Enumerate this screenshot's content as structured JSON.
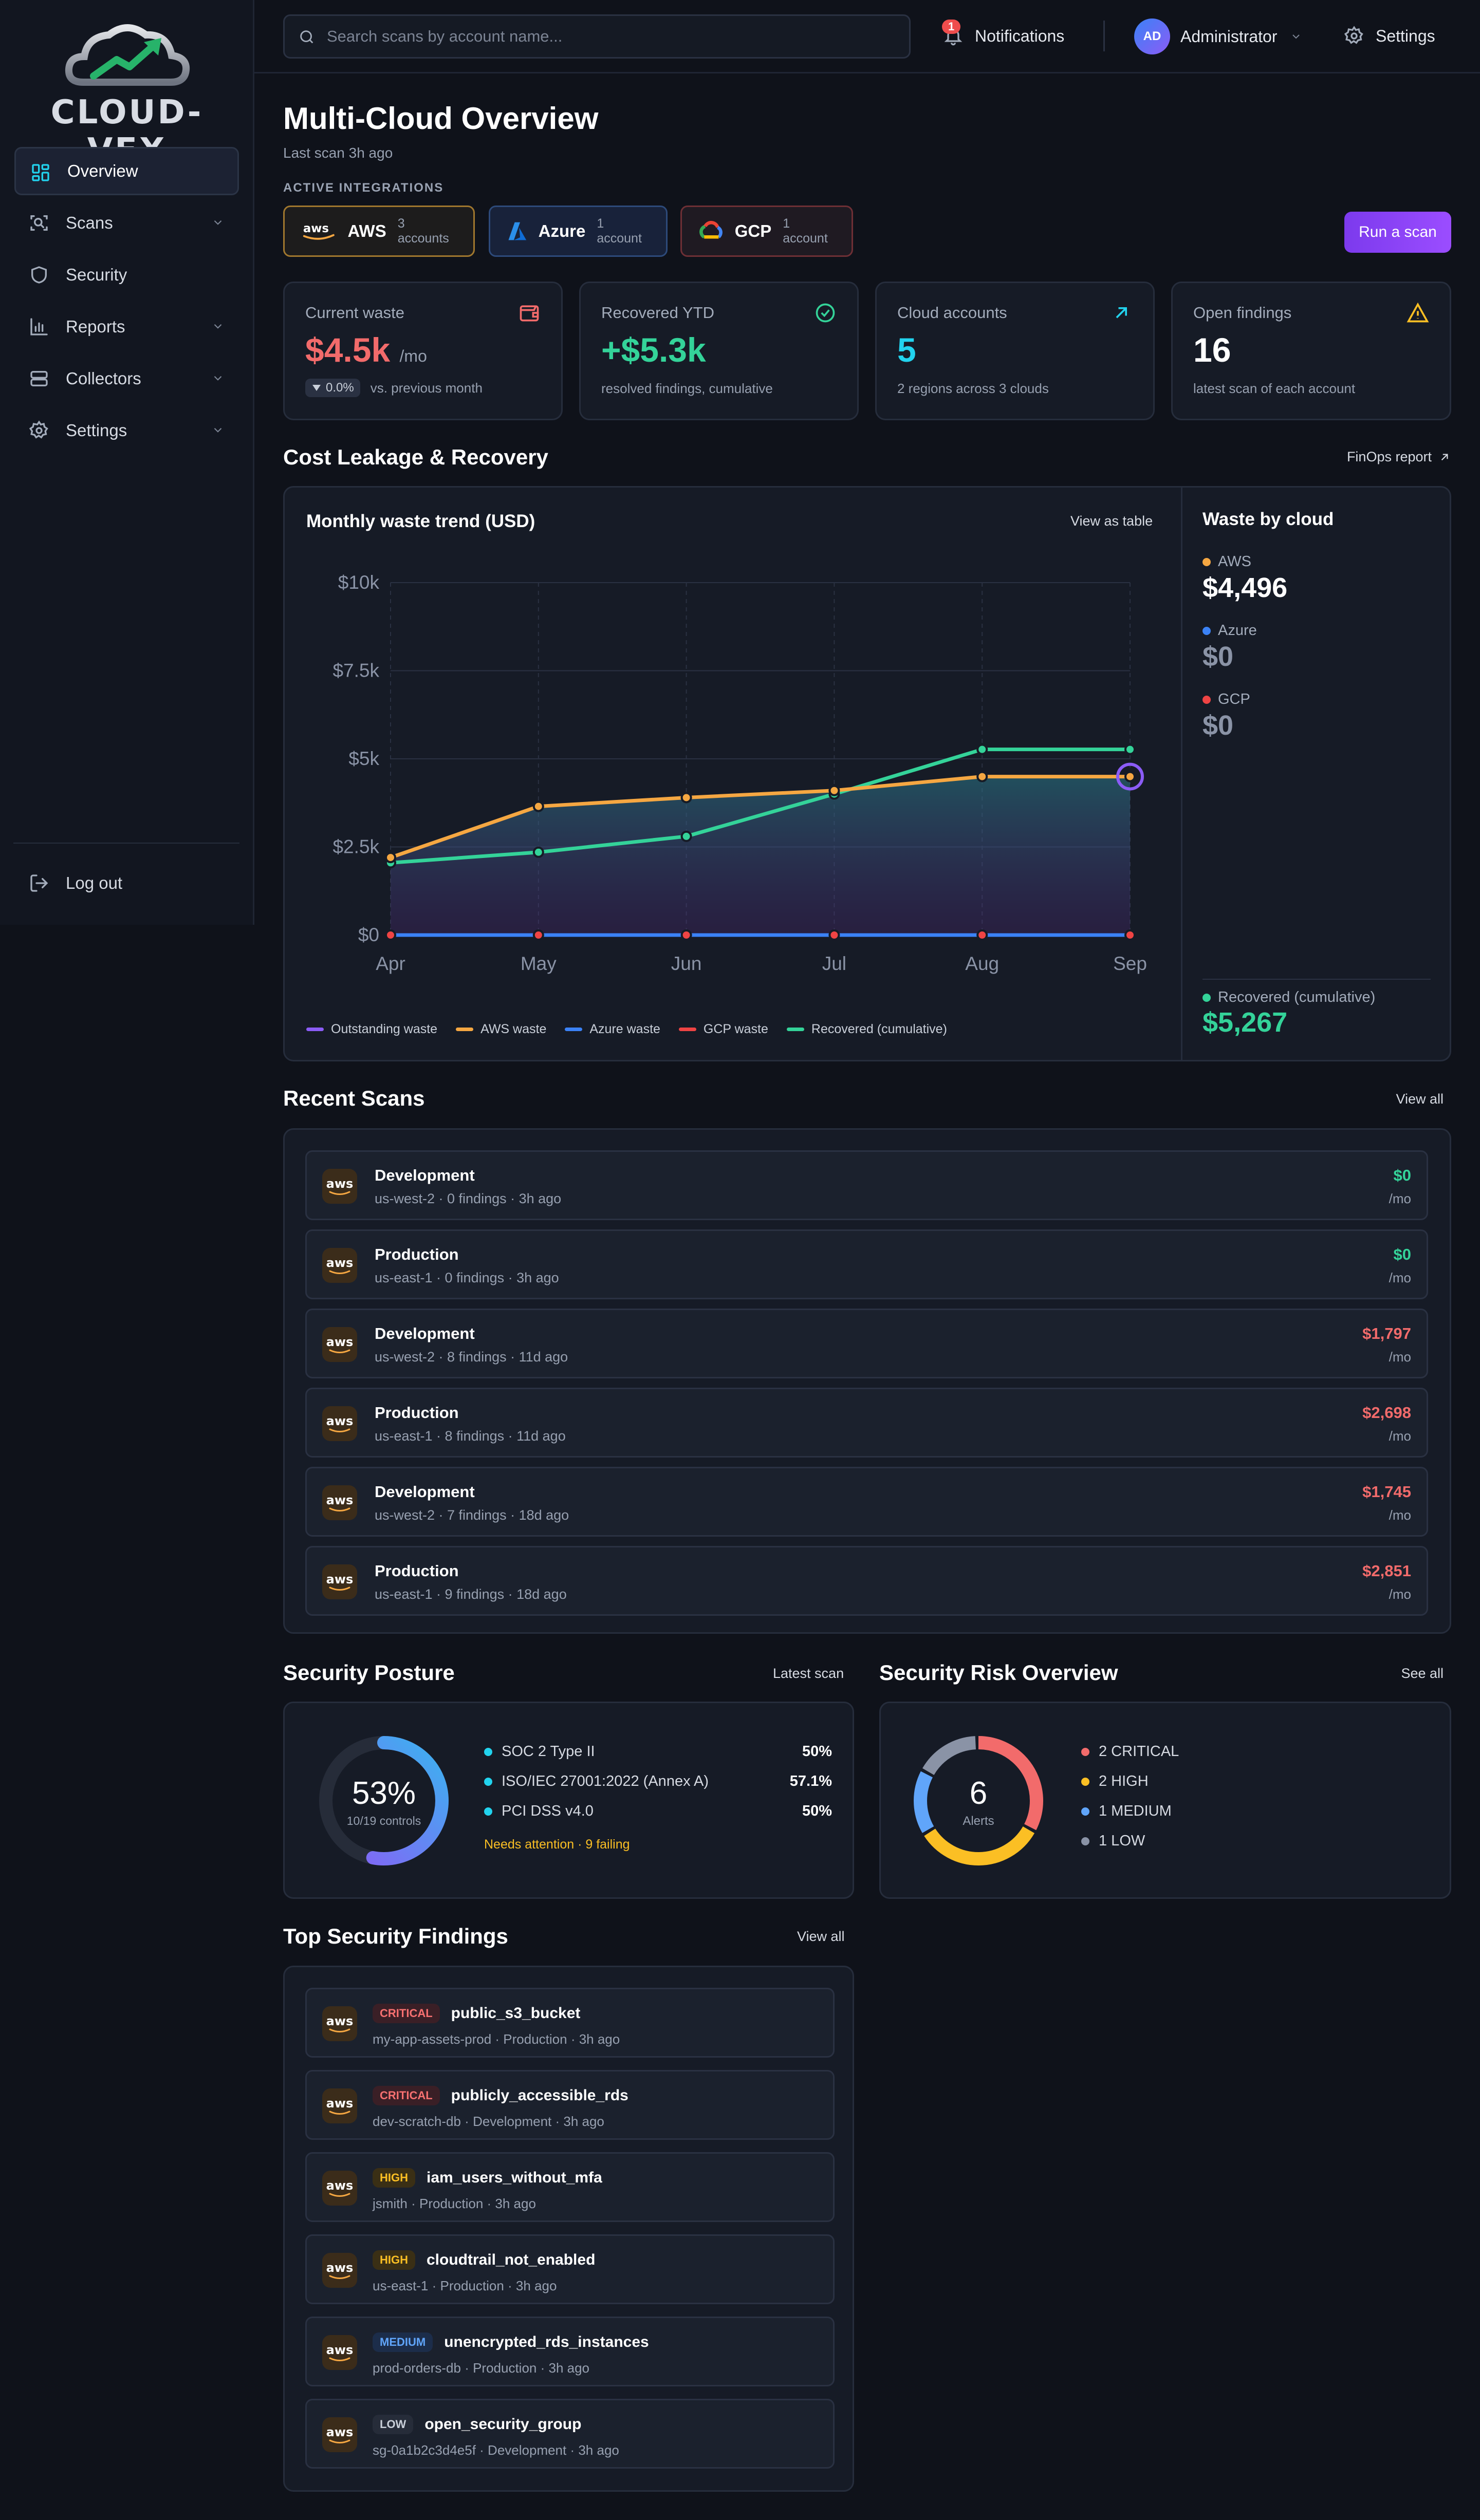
{
  "brand": {
    "name": "CLOUD-VEX"
  },
  "sidebar": {
    "items": [
      {
        "label": "Overview",
        "icon": "dashboard-icon"
      },
      {
        "label": "Scans",
        "icon": "scan-icon"
      },
      {
        "label": "Security",
        "icon": "shield-icon"
      },
      {
        "label": "Reports",
        "icon": "bar-chart-icon"
      },
      {
        "label": "Collectors",
        "icon": "server-icon"
      },
      {
        "label": "Settings",
        "icon": "gear-icon"
      }
    ],
    "logout": "Log out"
  },
  "topbar": {
    "search_placeholder": "Search scans by account name...",
    "notifications_label": "Notifications",
    "notifications_count": "1",
    "user_initials": "AD",
    "user_name": "Administrator",
    "settings_label": "Settings"
  },
  "page": {
    "title": "Multi-Cloud Overview",
    "subtitle": "Last scan 3h ago",
    "integrations_label": "ACTIVE INTEGRATIONS",
    "run_scan": "Run a scan"
  },
  "integrations": [
    {
      "name": "AWS",
      "count": "3 accounts",
      "border": "#a0772e",
      "bg": "#1d1c1c"
    },
    {
      "name": "Azure",
      "count": "1 account",
      "border": "#2d4a7a",
      "bg": "#18223a"
    },
    {
      "name": "GCP",
      "count": "1 account",
      "border": "#6e2f35",
      "bg": "#1f1a22"
    }
  ],
  "kpis": [
    {
      "label": "Current waste",
      "value": "$4.5k",
      "unit": "/mo",
      "delta": "0.0%",
      "sub": "vs. previous month",
      "color": "#f26b6b",
      "icon": "wallet-icon"
    },
    {
      "label": "Recovered YTD",
      "value": "+$5.3k",
      "sub": "resolved findings, cumulative",
      "color": "#34d399",
      "icon": "check-circle-icon"
    },
    {
      "label": "Cloud accounts",
      "value": "5",
      "sub": "2 regions across 3 clouds",
      "color": "#22d3ee",
      "icon": "arrow-up-right-icon"
    },
    {
      "label": "Open findings",
      "value": "16",
      "sub": "latest scan of each account",
      "color": "#ffffff",
      "icon": "warning-icon"
    }
  ],
  "cost": {
    "title": "Cost Leakage & Recovery",
    "link": "FinOps report",
    "chart_title": "Monthly waste trend (USD)",
    "view_table": "View as table"
  },
  "chart_data": {
    "type": "line",
    "title": "Monthly waste trend (USD)",
    "categories": [
      "Apr",
      "May",
      "Jun",
      "Jul",
      "Aug",
      "Sep"
    ],
    "y_ticks": [
      "$0",
      "$2.5k",
      "$5k",
      "$7.5k",
      "$10k"
    ],
    "ylim": [
      0,
      10000
    ],
    "grid": true,
    "legend": "bottom",
    "series": [
      {
        "name": "Outstanding waste",
        "color": "#8b5cf6",
        "values": [
          2200,
          3650,
          3900,
          4100,
          4496,
          4496
        ]
      },
      {
        "name": "AWS waste",
        "color": "#f5a742",
        "values": [
          2200,
          3650,
          3900,
          4100,
          4496,
          4496
        ]
      },
      {
        "name": "Azure waste",
        "color": "#3b82f6",
        "values": [
          0,
          0,
          0,
          0,
          0,
          0
        ]
      },
      {
        "name": "GCP waste",
        "color": "#ef4444",
        "values": [
          0,
          0,
          0,
          0,
          0,
          0
        ]
      },
      {
        "name": "Recovered (cumulative)",
        "color": "#34d399",
        "values": [
          2050,
          2350,
          2800,
          4000,
          5267,
          5267
        ]
      }
    ]
  },
  "waste_by_cloud": {
    "title": "Waste by cloud",
    "items": [
      {
        "name": "AWS",
        "value": "$4,496",
        "color": "#f5a742"
      },
      {
        "name": "Azure",
        "value": "$0",
        "color": "#3b82f6"
      },
      {
        "name": "GCP",
        "value": "$0",
        "color": "#ef4444"
      }
    ],
    "recovered_label": "Recovered (cumulative)",
    "recovered_value": "$5,267"
  },
  "recent_scans": {
    "title": "Recent Scans",
    "link": "View all",
    "unit": "/mo",
    "rows": [
      {
        "name": "Development",
        "meta": "us-west-2 · 0 findings · 3h ago",
        "amount": "$0",
        "color": "#34d399"
      },
      {
        "name": "Production",
        "meta": "us-east-1 · 0 findings · 3h ago",
        "amount": "$0",
        "color": "#34d399"
      },
      {
        "name": "Development",
        "meta": "us-west-2 · 8 findings · 11d ago",
        "amount": "$1,797",
        "color": "#f26b6b"
      },
      {
        "name": "Production",
        "meta": "us-east-1 · 8 findings · 11d ago",
        "amount": "$2,698",
        "color": "#f26b6b"
      },
      {
        "name": "Development",
        "meta": "us-west-2 · 7 findings · 18d ago",
        "amount": "$1,745",
        "color": "#f26b6b"
      },
      {
        "name": "Production",
        "meta": "us-east-1 · 9 findings · 18d ago",
        "amount": "$2,851",
        "color": "#f26b6b"
      }
    ]
  },
  "posture": {
    "title": "Security Posture",
    "link": "Latest scan",
    "percent": "53%",
    "fraction": 0.53,
    "controls": "10/19 controls",
    "frameworks": [
      {
        "name": "SOC 2 Type II",
        "value": "50%"
      },
      {
        "name": "ISO/IEC 27001:2022 (Annex A)",
        "value": "57.1%"
      },
      {
        "name": "PCI DSS v4.0",
        "value": "50%"
      }
    ],
    "attention": "Needs attention · 9 failing"
  },
  "risk": {
    "title": "Security Risk Overview",
    "link": "See all",
    "total": "6",
    "total_label": "Alerts",
    "items": [
      {
        "label": "2 CRITICAL",
        "count": 2,
        "color": "#f26b6b"
      },
      {
        "label": "2 HIGH",
        "count": 2,
        "color": "#fbbf24"
      },
      {
        "label": "1 MEDIUM",
        "count": 1,
        "color": "#60a5fa"
      },
      {
        "label": "1 LOW",
        "count": 1,
        "color": "#8a93a6"
      }
    ]
  },
  "findings": {
    "title": "Top Security Findings",
    "link": "View all",
    "rows": [
      {
        "severity": "CRITICAL",
        "name": "public_s3_bucket",
        "meta": "my-app-assets-prod · Production · 3h ago",
        "fg": "#f87171",
        "bg": "#3a1f26"
      },
      {
        "severity": "CRITICAL",
        "name": "publicly_accessible_rds",
        "meta": "dev-scratch-db · Development · 3h ago",
        "fg": "#f87171",
        "bg": "#3a1f26"
      },
      {
        "severity": "HIGH",
        "name": "iam_users_without_mfa",
        "meta": "jsmith · Production · 3h ago",
        "fg": "#fbbf24",
        "bg": "#3a2f15"
      },
      {
        "severity": "HIGH",
        "name": "cloudtrail_not_enabled",
        "meta": "us-east-1 · Production · 3h ago",
        "fg": "#fbbf24",
        "bg": "#3a2f15"
      },
      {
        "severity": "MEDIUM",
        "name": "unencrypted_rds_instances",
        "meta": "prod-orders-db · Production · 3h ago",
        "fg": "#60a5fa",
        "bg": "#1c2d4a"
      },
      {
        "severity": "LOW",
        "name": "open_security_group",
        "meta": "sg-0a1b2c3d4e5f · Development · 3h ago",
        "fg": "#c9cfd9",
        "bg": "#262c39"
      }
    ]
  }
}
